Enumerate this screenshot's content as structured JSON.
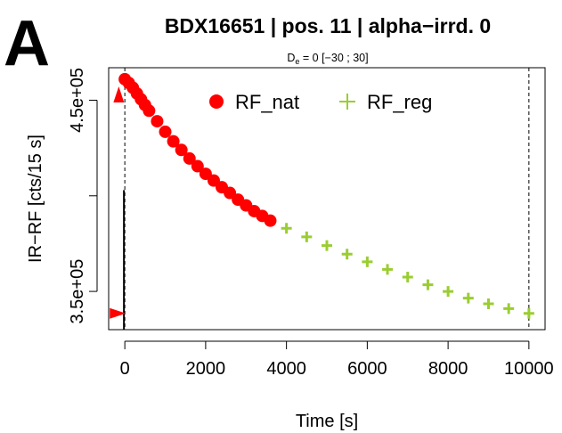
{
  "panel_letter": "A",
  "chart_data": {
    "type": "scatter",
    "title": "BDX16651 | pos. 11  | alpha−irrd. 0",
    "subtitle_base": "D",
    "subtitle_sub": "e",
    "subtitle_rest": " = 0 [−30 ; 30]",
    "xlabel": "Time [s]",
    "ylabel": "IR−RF [cts/15 s]",
    "xlim": [
      -400,
      10400
    ],
    "ylim": [
      330000,
      467000
    ],
    "x_ticks": [
      0,
      2000,
      4000,
      6000,
      8000,
      10000
    ],
    "x_tick_labels": [
      "0",
      "2000",
      "4000",
      "6000",
      "8000",
      "10000"
    ],
    "y_ticks": [
      350000,
      400000,
      450000
    ],
    "y_tick_labels": [
      "3.5e+05",
      "",
      "4.5e+05"
    ],
    "grid": false,
    "legend_position": "top-right",
    "series": [
      {
        "name": "RF_nat",
        "color": "#ff0000",
        "marker": "circle",
        "x": [
          0,
          100,
          200,
          300,
          400,
          500,
          600,
          800,
          1000,
          1200,
          1400,
          1600,
          1800,
          2000,
          2200,
          2400,
          2600,
          2800,
          3000,
          3200,
          3400,
          3600
        ],
        "y": [
          461000,
          459000,
          456500,
          453500,
          450500,
          447500,
          444500,
          439000,
          433500,
          428500,
          424000,
          419500,
          415500,
          411500,
          408000,
          404500,
          401500,
          398000,
          395000,
          392000,
          389500,
          387000
        ]
      },
      {
        "name": "RF_reg",
        "color": "#9acd32",
        "marker": "plus",
        "x": [
          3600,
          4000,
          4500,
          5000,
          5500,
          6000,
          6500,
          7000,
          7500,
          8000,
          8500,
          9000,
          9500,
          10000
        ],
        "y": [
          387000,
          383000,
          378500,
          374000,
          369500,
          365500,
          361500,
          357500,
          353500,
          350000,
          346500,
          343500,
          341000,
          338500
        ]
      }
    ],
    "annotations": {
      "vlines_x": [
        0,
        10000
      ],
      "spike_x": 0,
      "spike_y": [
        330000,
        403000
      ],
      "nat_marker_y": 453000,
      "reg_marker_y": 338500
    }
  }
}
